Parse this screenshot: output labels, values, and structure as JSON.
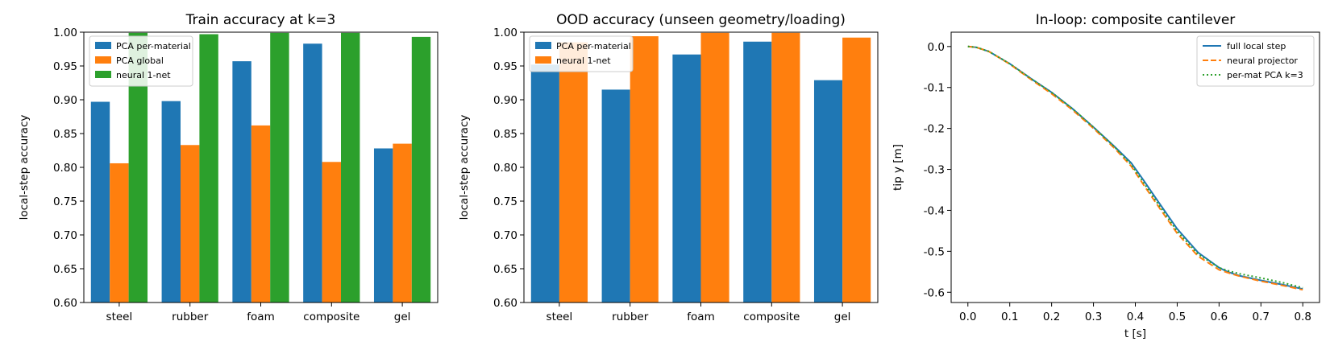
{
  "chart_data": [
    {
      "type": "bar",
      "title": "Train accuracy at k=3",
      "xlabel": "",
      "ylabel": "local-step accuracy",
      "ylim": [
        0.6,
        1.0
      ],
      "yticks": [
        "0.60",
        "0.65",
        "0.70",
        "0.75",
        "0.80",
        "0.85",
        "0.90",
        "0.95",
        "1.00"
      ],
      "categories": [
        "steel",
        "rubber",
        "foam",
        "composite",
        "gel"
      ],
      "legend_position": "top-left",
      "series": [
        {
          "name": "PCA per-material",
          "color": "#1f77b4",
          "values": [
            0.897,
            0.898,
            0.957,
            0.983,
            0.828
          ]
        },
        {
          "name": "PCA global",
          "color": "#ff7f0e",
          "values": [
            0.806,
            0.833,
            0.862,
            0.808,
            0.835
          ]
        },
        {
          "name": "neural 1-net",
          "color": "#2ca02c",
          "values": [
            0.999,
            0.997,
            0.999,
            0.999,
            0.993
          ]
        }
      ]
    },
    {
      "type": "bar",
      "title": "OOD accuracy (unseen geometry/loading)",
      "xlabel": "",
      "ylabel": "local-step accuracy",
      "ylim": [
        0.6,
        1.0
      ],
      "yticks": [
        "0.60",
        "0.65",
        "0.70",
        "0.75",
        "0.80",
        "0.85",
        "0.90",
        "0.95",
        "1.00"
      ],
      "categories": [
        "steel",
        "rubber",
        "foam",
        "composite",
        "gel"
      ],
      "legend_position": "top-left",
      "series": [
        {
          "name": "PCA per-material",
          "color": "#1f77b4",
          "values": [
            0.952,
            0.915,
            0.967,
            0.986,
            0.929
          ]
        },
        {
          "name": "neural 1-net",
          "color": "#ff7f0e",
          "values": [
            0.985,
            0.994,
            0.999,
            0.999,
            0.992
          ]
        }
      ]
    },
    {
      "type": "line",
      "title": "In-loop: composite cantilever",
      "xlabel": "t [s]",
      "ylabel": "tip y [m]",
      "xlim": [
        -0.04,
        0.84
      ],
      "ylim": [
        -0.625,
        0.035
      ],
      "xticks": [
        "0.0",
        "0.1",
        "0.2",
        "0.3",
        "0.4",
        "0.5",
        "0.6",
        "0.7",
        "0.8"
      ],
      "yticks": [
        "0.0",
        "-0.1",
        "-0.2",
        "-0.3",
        "-0.4",
        "-0.5",
        "-0.6"
      ],
      "legend_position": "top-right",
      "x": [
        0.0,
        0.02,
        0.05,
        0.1,
        0.15,
        0.2,
        0.25,
        0.3,
        0.35,
        0.39,
        0.42,
        0.45,
        0.5,
        0.55,
        0.6,
        0.62,
        0.65,
        0.7,
        0.75,
        0.8
      ],
      "series": [
        {
          "name": "full local step",
          "color": "#1f77b4",
          "dash": "solid",
          "values": [
            0.0,
            -0.002,
            -0.012,
            -0.042,
            -0.078,
            -0.112,
            -0.152,
            -0.197,
            -0.244,
            -0.284,
            -0.327,
            -0.372,
            -0.445,
            -0.503,
            -0.54,
            -0.55,
            -0.56,
            -0.571,
            -0.581,
            -0.592
          ]
        },
        {
          "name": "neural projector",
          "color": "#ff7f0e",
          "dash": "dashed",
          "values": [
            0.0,
            -0.002,
            -0.012,
            -0.043,
            -0.08,
            -0.115,
            -0.155,
            -0.2,
            -0.248,
            -0.292,
            -0.338,
            -0.383,
            -0.456,
            -0.512,
            -0.545,
            -0.552,
            -0.561,
            -0.573,
            -0.583,
            -0.594
          ]
        },
        {
          "name": "per-mat PCA k=3",
          "color": "#2ca02c",
          "dash": "dotted",
          "values": [
            0.0,
            -0.002,
            -0.012,
            -0.042,
            -0.078,
            -0.112,
            -0.152,
            -0.197,
            -0.245,
            -0.288,
            -0.333,
            -0.378,
            -0.451,
            -0.507,
            -0.54,
            -0.547,
            -0.555,
            -0.565,
            -0.576,
            -0.589
          ]
        }
      ]
    }
  ]
}
